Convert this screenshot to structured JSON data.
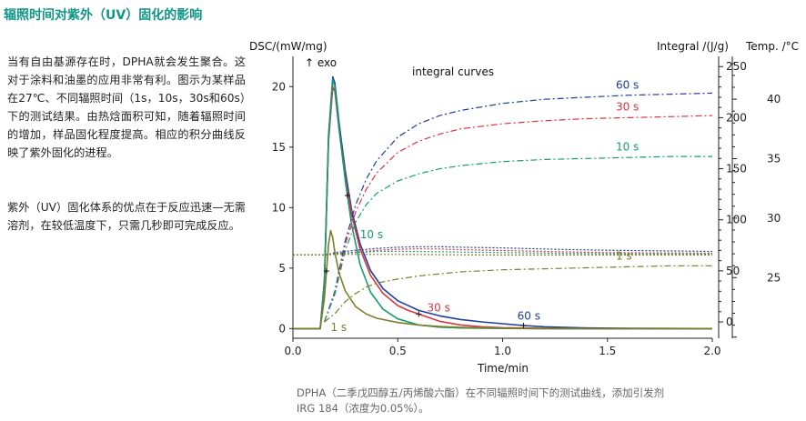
{
  "heading": "辐照时间对紫外（UV）固化的影响",
  "paragraph1": "当有自由基源存在时，DPHA就会发生聚合。这对于涂料和油墨的应用非常有利。图示为某样品在27℃、不同辐照时间（1s，10s，30s和60s）下的测试结果。由热焓面积可知，随着辐照时间的增加，样品固化程度提高。相应的积分曲线反映了紫外固化的进程。",
  "paragraph2": "紫外（UV）固化体系的优点在于反应迅速—无需溶剂，在较低温度下，只需几秒即可完成反应。",
  "caption_line1": "DPHA（二季戊四醇五/丙烯酸六酯）在不同辐照时间下的测试曲线，添加引发剂",
  "caption_line2": "IRG 184（浓度为0.05%）。",
  "colors": {
    "s60": "#1f3f9a",
    "s30": "#d9363e",
    "s10": "#179c72",
    "s1": "#7d7d2a",
    "heading": "#0f9687"
  },
  "chart_data": {
    "type": "line",
    "title": "",
    "xlabel": "Time/min",
    "ylabel": "DSC/(mW/mg)",
    "y2label": "Integral /(J/g)",
    "y3label": "Temp. /°C",
    "xlim": [
      0,
      2.0
    ],
    "ylim": [
      -0.8,
      22.5
    ],
    "y2lim": [
      -16,
      260
    ],
    "y3lim": [
      19.9,
      43.6
    ],
    "xticks": [
      0.0,
      0.5,
      1.0,
      1.5,
      2.0
    ],
    "xtick_labels": [
      "0.0",
      "0.5",
      "1.0",
      "1.5",
      "2.0"
    ],
    "yticks": [
      0,
      5,
      10,
      15,
      20
    ],
    "y2ticks": [
      0,
      50,
      100,
      150,
      200,
      250
    ],
    "y3ticks": [
      25,
      30,
      35,
      40
    ],
    "annotations": {
      "exo": "↑ exo",
      "integral": "integral curves"
    },
    "series": [
      {
        "name": "60 s",
        "kind": "dsc",
        "color": "#1f3f9a",
        "x": [
          0.0,
          0.13,
          0.15,
          0.17,
          0.19,
          0.2,
          0.22,
          0.25,
          0.28,
          0.32,
          0.37,
          0.43,
          0.5,
          0.6,
          0.7,
          0.8,
          0.9,
          1.0,
          1.1,
          1.2,
          1.4,
          1.6,
          1.8,
          2.0
        ],
        "y": [
          0.0,
          0.0,
          4.0,
          16.0,
          20.8,
          20.3,
          17.0,
          13.0,
          9.8,
          7.0,
          4.8,
          3.3,
          2.3,
          1.5,
          1.05,
          0.75,
          0.55,
          0.4,
          0.25,
          0.15,
          0.05,
          0.02,
          0.01,
          0.0
        ]
      },
      {
        "name": "30 s",
        "kind": "dsc",
        "color": "#d9363e",
        "x": [
          0.0,
          0.13,
          0.15,
          0.17,
          0.19,
          0.2,
          0.22,
          0.25,
          0.28,
          0.32,
          0.37,
          0.43,
          0.5,
          0.55,
          0.6,
          0.7,
          0.8,
          0.9,
          1.0,
          1.2,
          1.5,
          2.0
        ],
        "y": [
          0.0,
          0.0,
          3.8,
          15.5,
          20.0,
          19.6,
          16.5,
          12.5,
          9.4,
          6.6,
          4.4,
          2.9,
          1.9,
          1.5,
          1.2,
          0.6,
          0.3,
          0.15,
          0.07,
          0.02,
          0.0,
          0.0
        ]
      },
      {
        "name": "10 s",
        "kind": "dsc",
        "color": "#179c72",
        "x": [
          0.0,
          0.13,
          0.15,
          0.17,
          0.19,
          0.2,
          0.22,
          0.25,
          0.28,
          0.32,
          0.37,
          0.43,
          0.5,
          0.6,
          0.7,
          0.8,
          1.0,
          1.2,
          1.5,
          2.0
        ],
        "y": [
          0.0,
          0.0,
          3.8,
          16.0,
          20.6,
          20.0,
          16.5,
          12.2,
          8.6,
          5.3,
          3.0,
          1.6,
          0.8,
          0.3,
          0.12,
          0.05,
          0.01,
          0.0,
          0.0,
          0.0
        ]
      },
      {
        "name": "1 s",
        "kind": "dsc",
        "color": "#7d7d2a",
        "x": [
          0.0,
          0.13,
          0.15,
          0.17,
          0.18,
          0.19,
          0.2,
          0.22,
          0.25,
          0.3,
          0.35,
          0.4,
          0.5,
          0.6,
          0.7,
          0.8,
          1.0,
          1.2,
          1.5,
          2.0
        ],
        "y": [
          0.0,
          0.0,
          2.5,
          7.0,
          8.1,
          7.5,
          6.3,
          4.6,
          3.1,
          1.8,
          1.2,
          0.85,
          0.5,
          0.3,
          0.18,
          0.1,
          0.03,
          0.0,
          0.0,
          0.0
        ]
      },
      {
        "name": "60 s integral",
        "kind": "integral",
        "color": "#1f3f9a",
        "x": [
          0.15,
          0.2,
          0.25,
          0.3,
          0.35,
          0.4,
          0.5,
          0.6,
          0.7,
          0.8,
          1.0,
          1.2,
          1.4,
          1.6,
          1.8,
          2.0
        ],
        "y": [
          0,
          30,
          80,
          115,
          140,
          158,
          181,
          194,
          202,
          207,
          214,
          218,
          220,
          222,
          223,
          224
        ]
      },
      {
        "name": "30 s integral",
        "kind": "integral",
        "color": "#d9363e",
        "x": [
          0.15,
          0.2,
          0.25,
          0.3,
          0.35,
          0.4,
          0.5,
          0.6,
          0.7,
          0.8,
          1.0,
          1.2,
          1.4,
          1.6,
          1.8,
          2.0
        ],
        "y": [
          0,
          28,
          76,
          108,
          130,
          146,
          166,
          177,
          184,
          189,
          194,
          197,
          199,
          200,
          201,
          202
        ]
      },
      {
        "name": "10 s integral",
        "kind": "integral",
        "color": "#179c72",
        "x": [
          0.15,
          0.2,
          0.25,
          0.3,
          0.35,
          0.4,
          0.5,
          0.6,
          0.7,
          0.8,
          1.0,
          1.2,
          1.4,
          1.6,
          1.8,
          2.0
        ],
        "y": [
          0,
          27,
          70,
          98,
          115,
          126,
          138,
          145,
          150,
          153,
          157,
          159,
          160,
          161,
          162,
          162
        ]
      },
      {
        "name": "1 s integral",
        "kind": "integral",
        "color": "#7d7d2a",
        "x": [
          0.15,
          0.2,
          0.25,
          0.3,
          0.35,
          0.4,
          0.5,
          0.6,
          0.7,
          0.8,
          1.0,
          1.2,
          1.4,
          1.6,
          1.8,
          2.0
        ],
        "y": [
          0,
          8,
          20,
          28,
          34,
          38,
          42,
          45,
          47,
          49,
          51,
          52,
          53,
          54,
          55,
          55
        ]
      },
      {
        "name": "60 s temp",
        "kind": "temp",
        "color": "#1f3f9a",
        "x": [
          0.0,
          0.15,
          0.18,
          0.2,
          0.25,
          0.3,
          0.4,
          0.5,
          0.6,
          0.7,
          0.8,
          1.0,
          1.2,
          1.5,
          2.0
        ],
        "y": [
          26.9,
          26.9,
          27.0,
          27.1,
          27.2,
          27.3,
          27.45,
          27.55,
          27.6,
          27.6,
          27.55,
          27.5,
          27.4,
          27.3,
          27.2
        ]
      },
      {
        "name": "30 s temp",
        "kind": "temp",
        "color": "#d9363e",
        "x": [
          0.0,
          0.15,
          0.2,
          0.3,
          0.4,
          0.5,
          0.6,
          0.7,
          0.8,
          1.0,
          1.2,
          1.5,
          2.0
        ],
        "y": [
          26.9,
          26.9,
          27.0,
          27.15,
          27.3,
          27.38,
          27.42,
          27.4,
          27.35,
          27.28,
          27.2,
          27.1,
          27.05
        ]
      },
      {
        "name": "10 s temp",
        "kind": "temp",
        "color": "#179c72",
        "x": [
          0.0,
          0.15,
          0.2,
          0.3,
          0.4,
          0.5,
          0.6,
          0.8,
          1.0,
          1.5,
          2.0
        ],
        "y": [
          26.9,
          26.9,
          27.0,
          27.1,
          27.2,
          27.22,
          27.2,
          27.15,
          27.1,
          27.0,
          26.98
        ]
      },
      {
        "name": "1 s temp",
        "kind": "temp",
        "color": "#7d7d2a",
        "x": [
          0.0,
          0.15,
          0.2,
          0.3,
          0.5,
          0.8,
          1.0,
          1.5,
          2.0
        ],
        "y": [
          26.9,
          26.9,
          26.95,
          26.95,
          26.95,
          26.92,
          26.9,
          26.9,
          26.9
        ]
      }
    ],
    "labels": [
      {
        "text": "60 s",
        "series": "60 s",
        "pos": "integral-right"
      },
      {
        "text": "30 s",
        "series": "30 s",
        "pos": "integral-right"
      },
      {
        "text": "10 s",
        "series": "10 s",
        "pos": "integral-right"
      },
      {
        "text": "1 s",
        "series": "1 s",
        "pos": "integral-right"
      },
      {
        "text": "10 s",
        "series": "10 s",
        "pos": "dsc-decay"
      },
      {
        "text": "30 s",
        "series": "30 s",
        "pos": "dsc-tail"
      },
      {
        "text": "60 s",
        "series": "60 s",
        "pos": "dsc-tail"
      },
      {
        "text": "1 s",
        "series": "1 s",
        "pos": "dsc-onset"
      }
    ]
  }
}
